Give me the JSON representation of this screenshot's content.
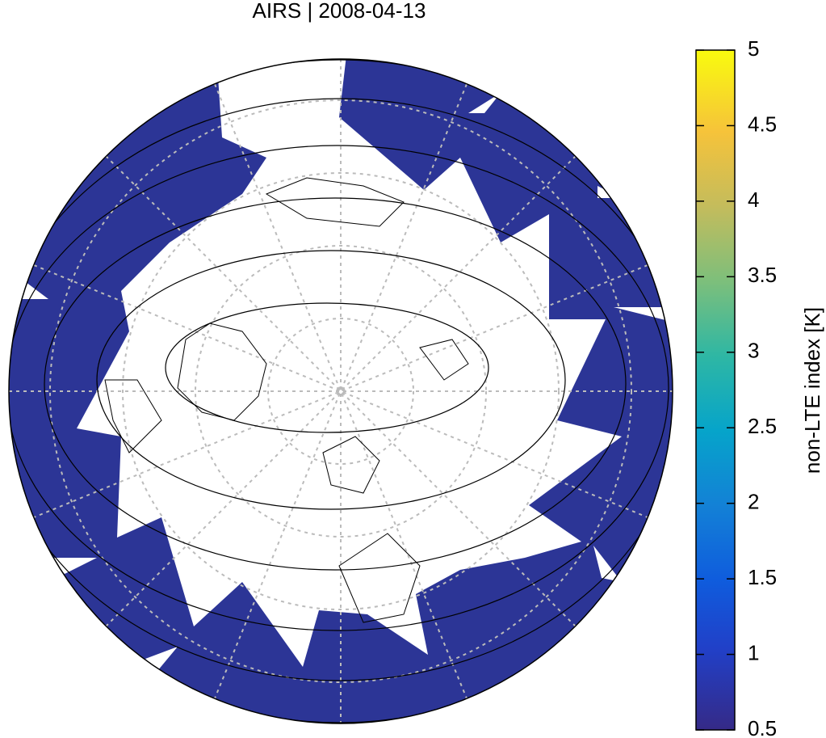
{
  "title": "AIRS | 2008-04-13",
  "colorbar": {
    "label": "non-LTE index [K]",
    "lim": [
      0.5,
      5
    ],
    "ticks": [
      0.5,
      1,
      1.5,
      2,
      2.5,
      3,
      3.5,
      4,
      4.5,
      5
    ]
  }
}
